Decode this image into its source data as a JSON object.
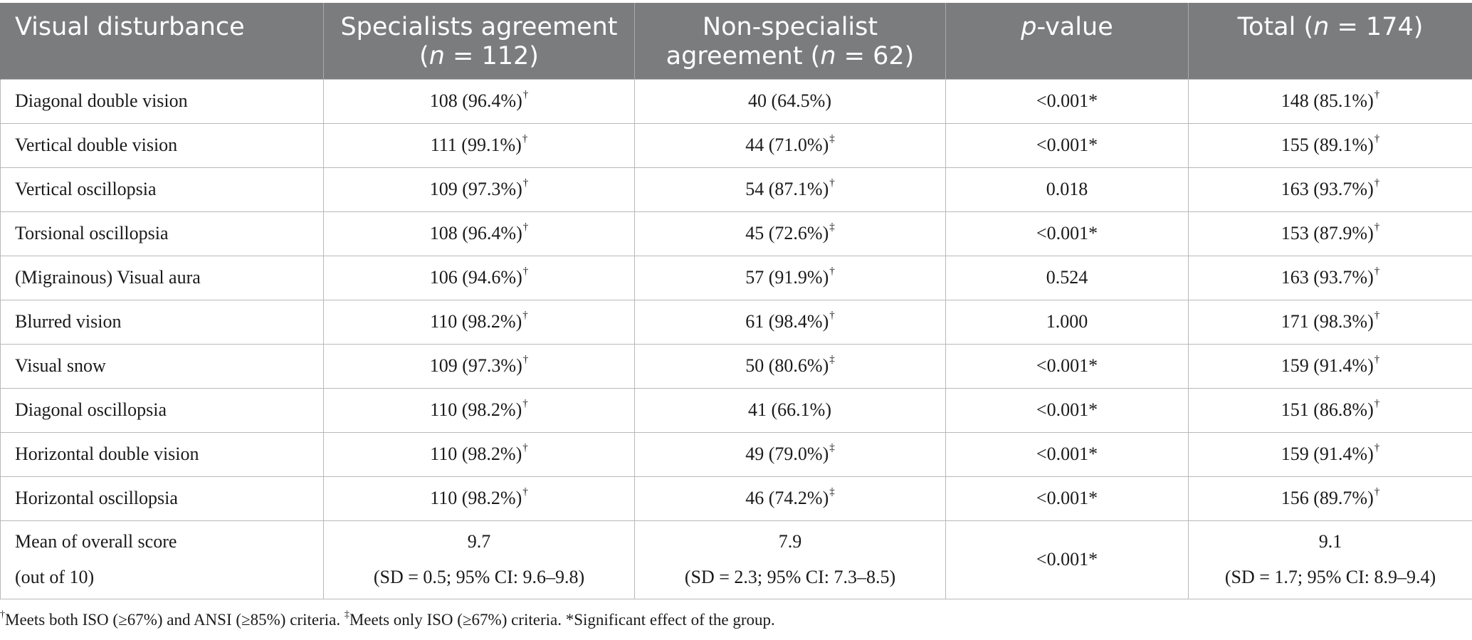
{
  "header": {
    "col1": "Visual disturbance",
    "col2_line1": "Specialists agreement",
    "col2_italic": "n",
    "col2_rest": " = 112)",
    "col3_line1": "Non-specialist",
    "col3_line2_pre": "agreement (",
    "col3_italic": "n",
    "col3_rest": " = 62)",
    "col4_italic": "p",
    "col4_rest": "-value",
    "col5_pre": "Total (",
    "col5_italic": "n",
    "col5_rest": " = 174)"
  },
  "rows": [
    {
      "label": "Diagonal double vision",
      "spec": "108 (96.4%)",
      "spec_mark": "†",
      "non": "40 (64.5%)",
      "non_mark": "",
      "p": "<0.001*",
      "total": "148 (85.1%)",
      "total_mark": "†"
    },
    {
      "label": "Vertical double vision",
      "spec": "111 (99.1%)",
      "spec_mark": "†",
      "non": "44 (71.0%)",
      "non_mark": "‡",
      "p": "<0.001*",
      "total": "155 (89.1%)",
      "total_mark": "†"
    },
    {
      "label": "Vertical oscillopsia",
      "spec": "109 (97.3%)",
      "spec_mark": "†",
      "non": "54 (87.1%)",
      "non_mark": "†",
      "p": "0.018",
      "total": "163 (93.7%)",
      "total_mark": "†"
    },
    {
      "label": "Torsional oscillopsia",
      "spec": "108 (96.4%)",
      "spec_mark": "†",
      "non": "45 (72.6%)",
      "non_mark": "‡",
      "p": "<0.001*",
      "total": "153 (87.9%)",
      "total_mark": "†"
    },
    {
      "label": "(Migrainous) Visual aura",
      "spec": "106 (94.6%)",
      "spec_mark": "†",
      "non": "57 (91.9%)",
      "non_mark": "†",
      "p": "0.524",
      "total": "163 (93.7%)",
      "total_mark": "†"
    },
    {
      "label": "Blurred vision",
      "spec": "110 (98.2%)",
      "spec_mark": "†",
      "non": "61 (98.4%)",
      "non_mark": "†",
      "p": "1.000",
      "total": "171 (98.3%)",
      "total_mark": "†"
    },
    {
      "label": "Visual snow",
      "spec": "109 (97.3%)",
      "spec_mark": "†",
      "non": "50 (80.6%)",
      "non_mark": "‡",
      "p": "<0.001*",
      "total": "159 (91.4%)",
      "total_mark": "†"
    },
    {
      "label": "Diagonal oscillopsia",
      "spec": "110 (98.2%)",
      "spec_mark": "†",
      "non": "41 (66.1%)",
      "non_mark": "",
      "p": "<0.001*",
      "total": "151 (86.8%)",
      "total_mark": "†"
    },
    {
      "label": "Horizontal double vision",
      "spec": "110 (98.2%)",
      "spec_mark": "†",
      "non": "49 (79.0%)",
      "non_mark": "‡",
      "p": "<0.001*",
      "total": "159 (91.4%)",
      "total_mark": "†"
    },
    {
      "label": "Horizontal oscillopsia",
      "spec": "110 (98.2%)",
      "spec_mark": "†",
      "non": "46 (74.2%)",
      "non_mark": "‡",
      "p": "<0.001*",
      "total": "156 (89.7%)",
      "total_mark": "†"
    }
  ],
  "mean_row": {
    "label_line1": "Mean of overall score",
    "label_line2": "(out of 10)",
    "spec_value": "9.7",
    "spec_detail": "(SD = 0.5; 95% CI: 9.6–9.8)",
    "non_value": "7.9",
    "non_detail": "(SD = 2.3; 95% CI: 7.3–8.5)",
    "p": "<0.001*",
    "total_value": "9.1",
    "total_detail": "(SD = 1.7; 95% CI: 8.9–9.4)"
  },
  "footnote": {
    "mark1": "†",
    "text1": "Meets both ISO (≥67%) and ANSI (≥85%) criteria. ",
    "mark2": "‡",
    "text2": "Meets only ISO (≥67%) criteria. *Significant effect of the group."
  }
}
